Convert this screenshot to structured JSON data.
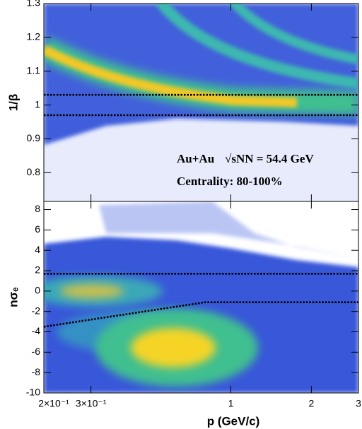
{
  "chart_data": [
    {
      "type": "histogram2d",
      "ylabel": "1/β",
      "xlim": [
        0.2,
        3
      ],
      "xlog": true,
      "ylim": [
        0.715,
        1.3
      ],
      "yticks": [
        0.8,
        0.9,
        1,
        1.1,
        1.2,
        1.3
      ],
      "lines": [
        {
          "x": [
            0.2,
            3
          ],
          "y": [
            1.03,
            1.03
          ]
        },
        {
          "x": [
            0.2,
            3
          ],
          "y": [
            0.97,
            0.97
          ]
        }
      ],
      "line_color": "#000000",
      "annotations": [
        "Au+Au",
        "√sNN = 54.4 GeV",
        "Centrality: 80-100%"
      ]
    },
    {
      "type": "histogram2d",
      "ylabel": "nσₑ",
      "xlabel": "p (GeV/c)",
      "xlim": [
        0.2,
        3
      ],
      "xlog": true,
      "xticks": [
        {
          "value": 0.2,
          "label": "2×10⁻¹"
        },
        {
          "value": 0.3,
          "label": "3×10⁻¹"
        },
        1,
        2,
        3
      ],
      "ylim": [
        -10,
        8.8
      ],
      "yticks": [
        -10,
        -8,
        -6,
        -4,
        -2,
        0,
        2,
        4,
        6,
        8
      ],
      "lines": [
        {
          "x": [
            0.2,
            3
          ],
          "y": [
            1.7,
            1.7
          ]
        },
        {
          "x": [
            0.2,
            0.8,
            3
          ],
          "y": [
            -3.5,
            -1.1,
            -1.1
          ]
        }
      ],
      "line_color": "#000000"
    }
  ]
}
